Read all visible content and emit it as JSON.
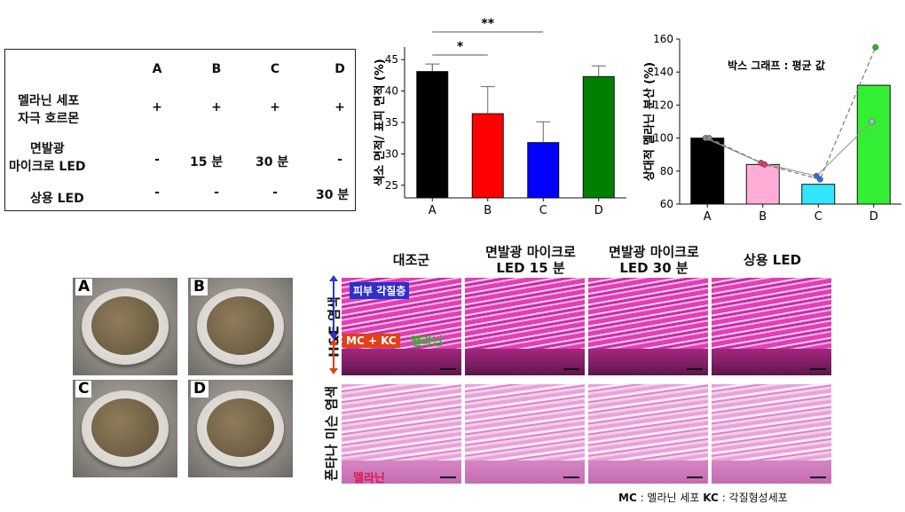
{
  "table": {
    "columns": [
      "A",
      "B",
      "C",
      "D"
    ],
    "rows": [
      {
        "label_line1": "멜라닌 세포",
        "label_line2": "자극 호르몬",
        "values": [
          "+",
          "+",
          "+",
          "+"
        ]
      },
      {
        "label_line1": "면발광",
        "label_line2": "마이크로 LED",
        "values": [
          "-",
          "15 분",
          "30 분",
          "-"
        ]
      },
      {
        "label_line1": "상용 LED",
        "label_line2": "",
        "values": [
          "-",
          "-",
          "-",
          "30 분"
        ]
      }
    ]
  },
  "chart_data": [
    {
      "type": "bar",
      "categories": [
        "A",
        "B",
        "C",
        "D"
      ],
      "values": [
        43.1,
        36.4,
        31.8,
        42.3
      ],
      "errors": [
        1.2,
        4.3,
        3.3,
        1.7
      ],
      "colors": [
        "#000000",
        "#ff0000",
        "#0000ff",
        "#008000"
      ],
      "ylabel": "색소 면적/ 표피 면적 (%)",
      "ylim": [
        23,
        47
      ],
      "yticks": [
        25,
        30,
        35,
        40,
        45
      ],
      "significance": [
        {
          "from": "A",
          "to": "B",
          "label": "*"
        },
        {
          "from": "A",
          "to": "C",
          "label": "**"
        }
      ]
    },
    {
      "type": "bar",
      "categories": [
        "A",
        "B",
        "C",
        "D"
      ],
      "values": [
        100,
        84,
        72,
        132
      ],
      "colors": [
        "#000000",
        "#ffadd6",
        "#33e6ff",
        "#33ee33"
      ],
      "ylabel": "상대적 멜라닌 분산 (%)",
      "ylim": [
        60,
        160
      ],
      "yticks": [
        60,
        80,
        100,
        120,
        140,
        160
      ],
      "annotation": "박스 그래프 : 평균 값",
      "series": [
        {
          "values": [
            100,
            85,
            77,
            110
          ],
          "marker_colors": [
            "#888888",
            "#e04060",
            "#3070e0",
            "#a0c0d0"
          ],
          "line": "solid"
        },
        {
          "values": [
            100,
            84,
            75,
            155
          ],
          "marker_colors": [
            "#888888",
            "#e04060",
            "#3070e0",
            "#30b030"
          ],
          "line": "dashed"
        }
      ]
    }
  ],
  "photos": {
    "labels": [
      "A",
      "B",
      "C",
      "D"
    ]
  },
  "histology": {
    "columns": [
      {
        "line1": "대조군",
        "line2": ""
      },
      {
        "line1": "면발광 마이크로",
        "line2": "LED 15 분"
      },
      {
        "line1": "면발광 마이크로",
        "line2": "LED 30 분"
      },
      {
        "line1": "상용 LED",
        "line2": ""
      }
    ],
    "row_labels": [
      "H&E 염색",
      "폰타나 미슨 염색"
    ],
    "annotations": {
      "stratum": "피부 각질층",
      "mc_kc": "MC + KC",
      "melanin_green": "멜라닌",
      "melanin_red": "멜라닌"
    },
    "footer": {
      "mc_abbr": "MC",
      "mc_text": ": 멜라닌 세포",
      "kc_abbr": "KC",
      "kc_text": ": 각질형성세포"
    }
  }
}
